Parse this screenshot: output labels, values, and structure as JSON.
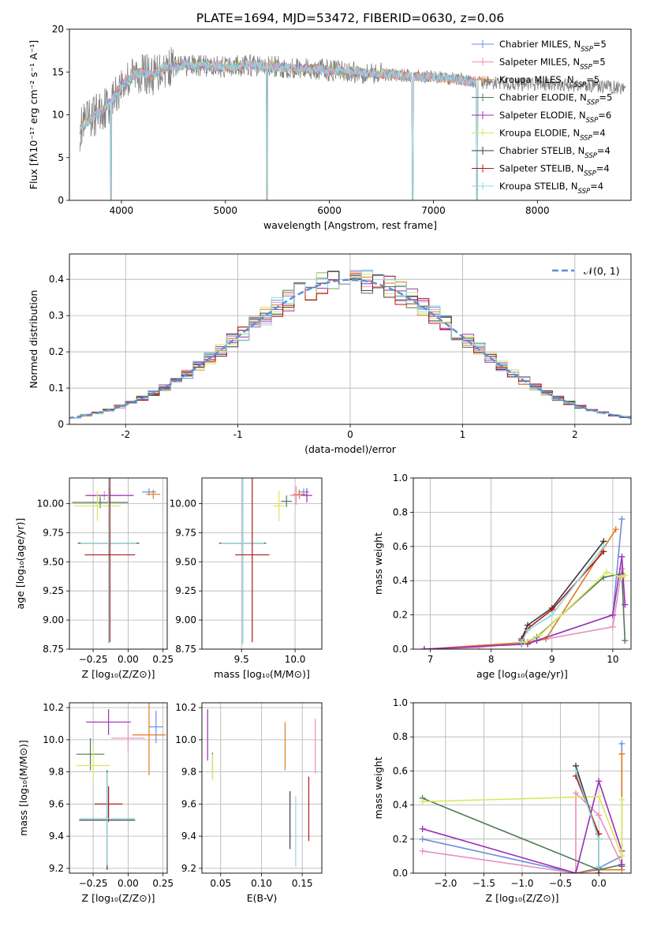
{
  "title": "PLATE=1694, MJD=53472, FIBERID=0630, z=0.06",
  "colors": {
    "chabrier_miles": "#6b8fd9",
    "salpeter_miles": "#e98fc2",
    "kroupa_miles": "#e07a1f",
    "chabrier_elodie": "#4f7a55",
    "salpeter_elodie": "#9b2fb5",
    "kroupa_elodie": "#d9e85a",
    "chabrier_stelib": "#3a3a3a",
    "salpeter_stelib": "#b01818",
    "kroupa_stelib": "#8fd8dc",
    "data": "#808080",
    "normal": "#5b8ed8"
  },
  "chart_data": [
    {
      "id": "spectrum",
      "type": "line",
      "xlabel": "wavelength [Angstrom, rest frame]",
      "ylabel": "Flux [fλ10⁻¹⁷ erg cm⁻² s⁻¹ A⁻¹]",
      "xlim": [
        3500,
        8900
      ],
      "ylim": [
        0,
        20
      ],
      "xticks": [
        4000,
        5000,
        6000,
        7000,
        8000
      ],
      "yticks": [
        0,
        5,
        10,
        15,
        20
      ],
      "legend_position": "top-right",
      "legend": [
        {
          "label": "Chabrier MILES, N_SSP=5",
          "color_key": "chabrier_miles"
        },
        {
          "label": "Salpeter MILES, N_SSP=5",
          "color_key": "salpeter_miles"
        },
        {
          "label": "Kroupa MILES, N_SSP=5",
          "color_key": "kroupa_miles"
        },
        {
          "label": "Chabrier ELODIE, N_SSP=5",
          "color_key": "chabrier_elodie"
        },
        {
          "label": "Salpeter ELODIE, N_SSP=6",
          "color_key": "salpeter_elodie"
        },
        {
          "label": "Kroupa ELODIE, N_SSP=4",
          "color_key": "kroupa_elodie"
        },
        {
          "label": "Chabrier STELIB, N_SSP=4",
          "color_key": "chabrier_stelib"
        },
        {
          "label": "Salpeter STELIB, N_SSP=4",
          "color_key": "salpeter_stelib"
        },
        {
          "label": "Kroupa STELIB, N_SSP=4",
          "color_key": "kroupa_stelib"
        }
      ],
      "continuum": {
        "x": [
          3600,
          3700,
          3800,
          3900,
          4000,
          4100,
          4200,
          4300,
          4400,
          4600,
          4800,
          5000,
          5200,
          5400,
          5600,
          5800,
          6000,
          6200,
          6400,
          6600,
          6800,
          7000,
          7200,
          7400,
          7600,
          7800,
          8000,
          8200,
          8400,
          8600,
          8800
        ],
        "y": [
          8.3,
          9.5,
          10.5,
          11.5,
          13.5,
          14.5,
          15.0,
          14.5,
          15.5,
          15.8,
          15.7,
          15.6,
          15.8,
          15.6,
          15.5,
          15.4,
          15.2,
          15.0,
          14.9,
          14.7,
          14.5,
          14.4,
          14.2,
          13.8,
          13.7,
          13.6,
          13.6,
          13.5,
          13.4,
          13.3,
          13.2
        ]
      },
      "data_range": [
        3600,
        8850
      ],
      "model_range": [
        3600,
        7430
      ],
      "dips": [
        [
          3900,
          0
        ],
        [
          5400,
          0
        ],
        [
          6800,
          0
        ],
        [
          7420,
          0
        ]
      ]
    },
    {
      "id": "residuals",
      "type": "bar",
      "xlabel": "(data-model)/error",
      "ylabel": "Normed distribution",
      "xlim": [
        -2.5,
        2.5
      ],
      "ylim": [
        0,
        0.47
      ],
      "xticks": [
        -2,
        -1,
        0,
        1,
        2
      ],
      "yticks": [
        0.0,
        0.1,
        0.2,
        0.3,
        0.4
      ],
      "legend_position": "top-right",
      "legend": [
        {
          "label": "𝒩(0, 1)",
          "color_key": "normal"
        }
      ],
      "bin_width": 0.1,
      "bin_start": -2.5,
      "series_colors": [
        "chabrier_miles",
        "salpeter_miles",
        "kroupa_miles",
        "chabrier_elodie",
        "salpeter_elodie",
        "kroupa_elodie",
        "chabrier_stelib",
        "salpeter_stelib",
        "kroupa_stelib"
      ]
    },
    {
      "id": "age_vs_Z",
      "type": "scatter",
      "xlabel": "Z [log₁₀(Z/Z⊙)]",
      "ylabel": "age  [log₁₀(age/yr)]",
      "xlim": [
        -0.42,
        0.28
      ],
      "ylim": [
        8.75,
        10.22
      ],
      "xticks": [
        -0.25,
        0.0,
        0.25
      ],
      "xticklabels": [
        "−0.25",
        "0.00",
        "0.25"
      ],
      "yticks": [
        8.75,
        9.0,
        9.25,
        9.5,
        9.75,
        10.0
      ],
      "yticklabels": [
        "8.75",
        "9.00",
        "9.25",
        "9.50",
        "9.75",
        "10.00"
      ],
      "points": [
        {
          "c": "chabrier_miles",
          "x": 0.15,
          "y": 10.1,
          "xe": 0.05,
          "ye": 0.03
        },
        {
          "c": "kroupa_miles",
          "x": 0.18,
          "y": 10.08,
          "xe": 0.05,
          "ye": 0.04
        },
        {
          "c": "salpeter_miles",
          "x": -0.17,
          "y": 10.07,
          "xe": 0.14,
          "ye": 0.04
        },
        {
          "c": "salpeter_elodie",
          "x": -0.13,
          "y": 10.07,
          "xe": 0.17,
          "ye": 0.07
        },
        {
          "c": "chabrier_elodie",
          "x": -0.2,
          "y": 10.01,
          "xe": 0.2,
          "ye": 0.05
        },
        {
          "c": "kroupa_elodie",
          "x": -0.22,
          "y": 9.98,
          "xe": 0.17,
          "ye": 0.13
        },
        {
          "c": "chabrier_stelib",
          "x": -0.14,
          "y": 9.66,
          "xe": 0.22,
          "ye": 0.86
        },
        {
          "c": "kroupa_stelib",
          "x": -0.14,
          "y": 9.66,
          "xe": 0.2,
          "ye": 0.86
        },
        {
          "c": "salpeter_stelib",
          "x": -0.13,
          "y": 9.56,
          "xe": 0.18,
          "ye": 0.75
        }
      ]
    },
    {
      "id": "age_vs_mass",
      "type": "scatter",
      "xlabel": "mass [log₁₀(M/M⊙)]",
      "ylabel": "",
      "xlim": [
        9.13,
        10.25
      ],
      "ylim": [
        8.75,
        10.22
      ],
      "xticks": [
        9.5,
        10.0
      ],
      "xticklabels": [
        "9.5",
        "10.0"
      ],
      "yticks": [
        8.75,
        9.0,
        9.25,
        9.5,
        9.75,
        10.0
      ],
      "yticklabels": [
        "8.75",
        "9.00",
        "9.25",
        "9.50",
        "9.75",
        "10.00"
      ],
      "points": [
        {
          "c": "chabrier_miles",
          "x": 10.08,
          "y": 10.1,
          "xe": 0.05,
          "ye": 0.03
        },
        {
          "c": "kroupa_miles",
          "x": 10.04,
          "y": 10.08,
          "xe": 0.06,
          "ye": 0.04
        },
        {
          "c": "salpeter_miles",
          "x": 10.01,
          "y": 10.07,
          "xe": 0.06,
          "ye": 0.08
        },
        {
          "c": "salpeter_elodie",
          "x": 10.11,
          "y": 10.07,
          "xe": 0.05,
          "ye": 0.06
        },
        {
          "c": "chabrier_elodie",
          "x": 9.92,
          "y": 10.02,
          "xe": 0.05,
          "ye": 0.05
        },
        {
          "c": "kroupa_elodie",
          "x": 9.85,
          "y": 9.98,
          "xe": 0.05,
          "ye": 0.13
        },
        {
          "c": "chabrier_stelib",
          "x": 9.51,
          "y": 9.66,
          "xe": 0.22,
          "ye": 0.86
        },
        {
          "c": "kroupa_stelib",
          "x": 9.51,
          "y": 9.66,
          "xe": 0.2,
          "ye": 0.86
        },
        {
          "c": "salpeter_stelib",
          "x": 9.6,
          "y": 9.56,
          "xe": 0.16,
          "ye": 0.75
        }
      ]
    },
    {
      "id": "weight_vs_age",
      "type": "line",
      "xlabel": "age  [log₁₀(age/yr)]",
      "ylabel": "mass weight",
      "xlim": [
        6.72,
        10.3
      ],
      "ylim": [
        0,
        1.0
      ],
      "xticks": [
        7,
        8,
        9,
        10
      ],
      "xticklabels": [
        "7",
        "8",
        "9",
        "10"
      ],
      "yticks": [
        0.0,
        0.2,
        0.4,
        0.6,
        0.8,
        1.0
      ],
      "yticklabels": [
        "0.0",
        "0.2",
        "0.4",
        "0.6",
        "0.8",
        "1.0"
      ],
      "series": [
        {
          "c": "chabrier_miles",
          "x": [
            6.9,
            8.6,
            8.75,
            10.0,
            10.15
          ],
          "y": [
            0.0,
            0.03,
            0.05,
            0.2,
            0.76
          ]
        },
        {
          "c": "salpeter_miles",
          "x": [
            6.9,
            7.8,
            8.6,
            10.0,
            10.15
          ],
          "y": [
            0.0,
            0.01,
            0.04,
            0.13,
            0.47
          ]
        },
        {
          "c": "kroupa_miles",
          "x": [
            6.9,
            8.6,
            8.9,
            10.05
          ],
          "y": [
            0.0,
            0.04,
            0.06,
            0.7
          ]
        },
        {
          "c": "chabrier_elodie",
          "x": [
            8.5,
            8.75,
            9.85,
            10.15,
            10.2
          ],
          "y": [
            0.03,
            0.07,
            0.42,
            0.44,
            0.05
          ]
        },
        {
          "c": "salpeter_elodie",
          "x": [
            6.9,
            8.6,
            8.75,
            10.0,
            10.15,
            10.2
          ],
          "y": [
            0.0,
            0.03,
            0.05,
            0.2,
            0.54,
            0.26
          ]
        },
        {
          "c": "kroupa_elodie",
          "x": [
            8.55,
            8.8,
            9.9,
            10.15,
            10.2
          ],
          "y": [
            0.04,
            0.08,
            0.45,
            0.42,
            0.43
          ]
        },
        {
          "c": "chabrier_stelib",
          "x": [
            8.5,
            8.6,
            9.0,
            9.85
          ],
          "y": [
            0.06,
            0.14,
            0.24,
            0.63
          ]
        },
        {
          "c": "salpeter_stelib",
          "x": [
            8.5,
            8.6,
            9.0,
            9.85
          ],
          "y": [
            0.05,
            0.12,
            0.23,
            0.57
          ]
        },
        {
          "c": "kroupa_stelib",
          "x": [
            8.5,
            8.6,
            9.0,
            9.85
          ],
          "y": [
            0.04,
            0.11,
            0.2,
            0.6
          ]
        }
      ]
    },
    {
      "id": "mass_vs_Z",
      "type": "scatter",
      "xlabel": "Z [log₁₀(Z/Z⊙)]",
      "ylabel": "mass [log₁₀(M/M⊙)]",
      "xlim": [
        -0.42,
        0.28
      ],
      "ylim": [
        9.17,
        10.23
      ],
      "xticks": [
        -0.25,
        0.0,
        0.25
      ],
      "xticklabels": [
        "−0.25",
        "0.00",
        "0.25"
      ],
      "yticks": [
        9.2,
        9.4,
        9.6,
        9.8,
        10.0,
        10.2
      ],
      "yticklabels": [
        "9.2",
        "9.4",
        "9.6",
        "9.8",
        "10.0",
        "10.2"
      ],
      "points": [
        {
          "c": "salpeter_elodie",
          "x": -0.14,
          "y": 10.11,
          "xe": 0.16,
          "ye": 0.08
        },
        {
          "c": "chabrier_miles",
          "x": 0.2,
          "y": 10.08,
          "xe": 0.05,
          "ye": 0.1
        },
        {
          "c": "kroupa_miles",
          "x": 0.15,
          "y": 10.03,
          "xe": 0.12,
          "ye": 0.25
        },
        {
          "c": "salpeter_miles",
          "x": 0.0,
          "y": 10.01,
          "xe": 0.12,
          "ye": 0.08
        },
        {
          "c": "chabrier_elodie",
          "x": -0.27,
          "y": 9.91,
          "xe": 0.1,
          "ye": 0.1
        },
        {
          "c": "kroupa_elodie",
          "x": -0.25,
          "y": 9.84,
          "xe": 0.12,
          "ye": 0.1
        },
        {
          "c": "salpeter_stelib",
          "x": -0.14,
          "y": 9.6,
          "xe": 0.1,
          "ye": 0.11
        },
        {
          "c": "chabrier_stelib",
          "x": -0.15,
          "y": 9.5,
          "xe": 0.2,
          "ye": 0.31
        },
        {
          "c": "kroupa_stelib",
          "x": -0.15,
          "y": 9.51,
          "xe": 0.2,
          "ye": 0.29
        }
      ]
    },
    {
      "id": "mass_vs_ebv",
      "type": "scatter",
      "xlabel": "E(B-V)",
      "ylabel": "",
      "xlim": [
        0.027,
        0.174
      ],
      "ylim": [
        9.17,
        10.23
      ],
      "xticks": [
        0.05,
        0.1,
        0.15
      ],
      "xticklabels": [
        "0.05",
        "0.10",
        "0.15"
      ],
      "yticks": [
        9.2,
        9.4,
        9.6,
        9.8,
        10.0,
        10.2
      ],
      "yticklabels": [
        "9.2",
        "9.4",
        "9.6",
        "9.8",
        "10.0",
        "10.2"
      ],
      "points": [
        {
          "c": "salpeter_elodie",
          "x": 0.034,
          "y": 10.03,
          "xe": 0,
          "ye": 0.16
        },
        {
          "c": "chabrier_elodie",
          "x": 0.04,
          "y": 9.84,
          "xe": 0,
          "ye": 0.08
        },
        {
          "c": "kroupa_elodie",
          "x": 0.04,
          "y": 9.83,
          "xe": 0,
          "ye": 0.08
        },
        {
          "c": "kroupa_miles",
          "x": 0.129,
          "y": 9.96,
          "xe": 0,
          "ye": 0.15
        },
        {
          "c": "chabrier_stelib",
          "x": 0.135,
          "y": 9.5,
          "xe": 0,
          "ye": 0.18
        },
        {
          "c": "kroupa_stelib",
          "x": 0.142,
          "y": 9.43,
          "xe": 0,
          "ye": 0.22
        },
        {
          "c": "salpeter_stelib",
          "x": 0.158,
          "y": 9.57,
          "xe": 0,
          "ye": 0.2
        },
        {
          "c": "salpeter_miles",
          "x": 0.166,
          "y": 9.96,
          "xe": 0,
          "ye": 0.17
        }
      ]
    },
    {
      "id": "weight_vs_Z",
      "type": "line",
      "xlabel": "Z [log₁₀(Z/Z⊙)]",
      "ylabel": "mass weight",
      "xlim": [
        -2.42,
        0.42
      ],
      "ylim": [
        0,
        1.0
      ],
      "xticks": [
        -2.0,
        -1.5,
        -1.0,
        -0.5,
        0.0
      ],
      "xticklabels": [
        "−2.0",
        "−1.5",
        "−1.0",
        "−0.5",
        "0.0"
      ],
      "yticks": [
        0.0,
        0.2,
        0.4,
        0.6,
        0.8,
        1.0
      ],
      "yticklabels": [
        "0.0",
        "0.2",
        "0.4",
        "0.6",
        "0.8",
        "1.0"
      ],
      "series": [
        {
          "c": "chabrier_miles",
          "x": [
            -2.3,
            -0.3,
            0.0,
            0.3,
            0.3
          ],
          "y": [
            0.2,
            0.0,
            0.03,
            0.1,
            0.76
          ]
        },
        {
          "c": "salpeter_miles",
          "x": [
            -2.3,
            -0.3,
            -0.3,
            0.0,
            0.3
          ],
          "y": [
            0.13,
            0.0,
            0.47,
            0.34,
            0.05
          ]
        },
        {
          "c": "kroupa_miles",
          "x": [
            -0.3,
            0.0,
            0.3,
            0.3
          ],
          "y": [
            0.0,
            0.02,
            0.02,
            0.7
          ]
        },
        {
          "c": "chabrier_elodie",
          "x": [
            -2.3,
            0.0,
            0.3,
            0.3
          ],
          "y": [
            0.44,
            0.02,
            0.05,
            0.04
          ]
        },
        {
          "c": "salpeter_elodie",
          "x": [
            -2.3,
            -0.3,
            0.0,
            0.3,
            0.3
          ],
          "y": [
            0.26,
            0.0,
            0.54,
            0.13,
            0.05
          ]
        },
        {
          "c": "kroupa_elodie",
          "x": [
            -2.3,
            0.0,
            0.3,
            0.3
          ],
          "y": [
            0.42,
            0.45,
            0.1,
            0.43
          ]
        },
        {
          "c": "chabrier_stelib",
          "x": [
            -0.3,
            0.0,
            0.0
          ],
          "y": [
            0.63,
            0.2,
            0.0
          ]
        },
        {
          "c": "salpeter_stelib",
          "x": [
            -0.3,
            0.0,
            0.0
          ],
          "y": [
            0.57,
            0.23,
            0.0
          ]
        },
        {
          "c": "kroupa_stelib",
          "x": [
            -0.3,
            0.0,
            0.0
          ],
          "y": [
            0.6,
            0.2,
            0.04
          ]
        }
      ]
    }
  ]
}
